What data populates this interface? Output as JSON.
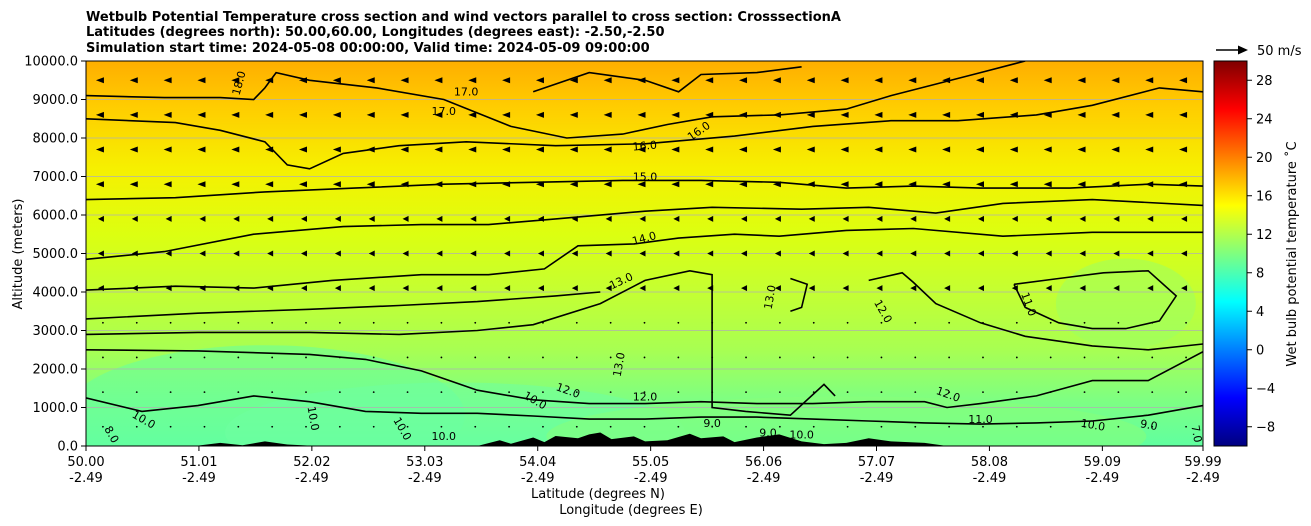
{
  "chart_data": {
    "type": "heatmap",
    "title_lines": [
      "Wetbulb Potential Temperature cross section and wind vectors parallel to cross section: CrosssectionA",
      "Latitudes (degrees north): 50.00,60.00, Longitudes (degrees east): -2.50,-2.50",
      "Simulation start time: 2024-05-08 00:00:00, Valid time: 2024-05-09 09:00:00"
    ],
    "ylabel": "Altitude (meters)",
    "xlabel_lines": [
      "Latitude (degrees N)",
      "Longitude (degrees E)"
    ],
    "x_range": [
      50.0,
      59.99
    ],
    "ylim": [
      0,
      10000
    ],
    "x_ticks": [
      {
        "lat": "50.00",
        "lon": "-2.49",
        "value": 50.0
      },
      {
        "lat": "51.01",
        "lon": "-2.49",
        "value": 51.01
      },
      {
        "lat": "52.02",
        "lon": "-2.49",
        "value": 52.02
      },
      {
        "lat": "53.03",
        "lon": "-2.49",
        "value": 53.03
      },
      {
        "lat": "54.04",
        "lon": "-2.49",
        "value": 54.04
      },
      {
        "lat": "55.05",
        "lon": "-2.49",
        "value": 55.05
      },
      {
        "lat": "56.06",
        "lon": "-2.49",
        "value": 56.06
      },
      {
        "lat": "57.07",
        "lon": "-2.49",
        "value": 57.07
      },
      {
        "lat": "58.08",
        "lon": "-2.49",
        "value": 58.08
      },
      {
        "lat": "59.09",
        "lon": "-2.49",
        "value": 59.09
      },
      {
        "lat": "59.99",
        "lon": "-2.49",
        "value": 59.99
      }
    ],
    "y_ticks": [
      {
        "label": "0.0",
        "value": 0
      },
      {
        "label": "1000.0",
        "value": 1000
      },
      {
        "label": "2000.0",
        "value": 2000
      },
      {
        "label": "3000.0",
        "value": 3000
      },
      {
        "label": "4000.0",
        "value": 4000
      },
      {
        "label": "5000.0",
        "value": 5000
      },
      {
        "label": "6000.0",
        "value": 6000
      },
      {
        "label": "7000.0",
        "value": 7000
      },
      {
        "label": "8000.0",
        "value": 8000
      },
      {
        "label": "9000.0",
        "value": 9000
      },
      {
        "label": "10000.0",
        "value": 10000
      }
    ],
    "grid": "horizontal",
    "colorbar": {
      "label": "Wet bulb potential temperature ˚C",
      "range": [
        -10,
        30
      ],
      "ticks": [
        {
          "label": "−8",
          "value": -8
        },
        {
          "label": "−4",
          "value": -4
        },
        {
          "label": "0",
          "value": 0
        },
        {
          "label": "4",
          "value": 4
        },
        {
          "label": "8",
          "value": 8
        },
        {
          "label": "12",
          "value": 12
        },
        {
          "label": "16",
          "value": 16
        },
        {
          "label": "20",
          "value": 20
        },
        {
          "label": "24",
          "value": 24
        },
        {
          "label": "28",
          "value": 28
        }
      ],
      "colors": [
        "#00007f",
        "#0000ff",
        "#007fff",
        "#00ffff",
        "#7fff7f",
        "#ffff00",
        "#ff7f00",
        "#ff0000",
        "#7f0000"
      ]
    },
    "wind_key": {
      "label": "50 m/s"
    },
    "contour_lines": [
      {
        "level": 11,
        "label": "11.0",
        "points": [
          [
            50.0,
            1250
          ],
          [
            50.5,
            900
          ],
          [
            51.0,
            1050
          ],
          [
            51.5,
            1300
          ],
          [
            52.0,
            1150
          ],
          [
            52.5,
            900
          ],
          [
            53.0,
            850
          ],
          [
            53.5,
            850
          ],
          [
            54.0,
            780
          ],
          [
            54.5,
            700
          ],
          [
            55.0,
            700
          ],
          [
            55.5,
            750
          ],
          [
            56.0,
            750
          ],
          [
            56.5,
            700
          ],
          [
            57.0,
            650
          ],
          [
            57.5,
            600
          ],
          [
            58.0,
            570
          ],
          [
            58.5,
            600
          ],
          [
            59.0,
            650
          ],
          [
            59.5,
            800
          ],
          [
            59.99,
            1050
          ]
        ]
      },
      {
        "level": 12,
        "label": "12.0",
        "points": [
          [
            50.0,
            2500
          ],
          [
            51.0,
            2470
          ],
          [
            52.0,
            2380
          ],
          [
            52.5,
            2250
          ],
          [
            53.0,
            1950
          ],
          [
            53.5,
            1450
          ],
          [
            54.0,
            1200
          ],
          [
            54.5,
            1100
          ],
          [
            55.0,
            1100
          ],
          [
            55.5,
            1150
          ],
          [
            56.0,
            1100
          ],
          [
            56.5,
            1100
          ],
          [
            57.0,
            1150
          ],
          [
            57.5,
            1150
          ],
          [
            57.7,
            1000
          ],
          [
            58.0,
            1100
          ],
          [
            58.5,
            1300
          ],
          [
            59.0,
            1700
          ],
          [
            59.5,
            1700
          ],
          [
            59.99,
            2450
          ]
        ]
      },
      {
        "level": 13,
        "label": "13.0",
        "points": [
          [
            50.0,
            2900
          ],
          [
            51.0,
            2950
          ],
          [
            52.0,
            2950
          ],
          [
            52.8,
            2900
          ],
          [
            53.5,
            3000
          ],
          [
            54.0,
            3150
          ],
          [
            54.6,
            3700
          ],
          [
            55.0,
            4300
          ],
          [
            55.4,
            4550
          ],
          [
            55.6,
            4450
          ],
          [
            55.6,
            1000
          ],
          [
            55.9,
            900
          ],
          [
            56.3,
            800
          ],
          [
            56.6,
            1600
          ],
          [
            56.7,
            1300
          ]
        ]
      },
      {
        "level": 13,
        "label": "13.0",
        "points": [
          [
            56.3,
            3500
          ],
          [
            56.4,
            3600
          ],
          [
            56.45,
            4200
          ],
          [
            56.3,
            4350
          ]
        ]
      },
      {
        "level": 13,
        "label": "",
        "points": [
          [
            50.0,
            3300
          ],
          [
            51.0,
            3450
          ],
          [
            52.0,
            3550
          ],
          [
            52.8,
            3650
          ],
          [
            53.5,
            3750
          ],
          [
            54.2,
            3900
          ],
          [
            54.6,
            4000
          ]
        ]
      },
      {
        "level": 12,
        "label": "12.0",
        "points": [
          [
            57.0,
            4300
          ],
          [
            57.3,
            4500
          ],
          [
            57.4,
            4250
          ],
          [
            57.6,
            3700
          ],
          [
            58.0,
            3200
          ],
          [
            58.4,
            2850
          ],
          [
            59.0,
            2600
          ],
          [
            59.5,
            2500
          ],
          [
            59.99,
            2650
          ]
        ]
      },
      {
        "level": 11,
        "label": "11.0",
        "points": [
          [
            58.3,
            4200
          ],
          [
            58.4,
            3600
          ],
          [
            58.7,
            3200
          ],
          [
            59.0,
            3050
          ],
          [
            59.3,
            3050
          ],
          [
            59.6,
            3250
          ],
          [
            59.75,
            3900
          ],
          [
            59.5,
            4550
          ],
          [
            59.1,
            4500
          ],
          [
            58.7,
            4350
          ],
          [
            58.3,
            4200
          ]
        ]
      },
      {
        "level": 14,
        "label": "14.0",
        "points": [
          [
            50.0,
            4050
          ],
          [
            50.8,
            4150
          ],
          [
            51.5,
            4100
          ],
          [
            52.2,
            4300
          ],
          [
            53.0,
            4450
          ],
          [
            53.6,
            4450
          ],
          [
            54.1,
            4600
          ],
          [
            54.4,
            5200
          ],
          [
            54.9,
            5250
          ],
          [
            55.3,
            5400
          ],
          [
            55.8,
            5500
          ],
          [
            56.2,
            5450
          ],
          [
            56.8,
            5600
          ],
          [
            57.4,
            5650
          ],
          [
            58.2,
            5450
          ],
          [
            59.0,
            5550
          ],
          [
            59.99,
            5550
          ]
        ]
      },
      {
        "level": 14,
        "label": "",
        "points": [
          [
            50.0,
            4850
          ],
          [
            50.7,
            5050
          ],
          [
            51.5,
            5500
          ],
          [
            52.3,
            5700
          ],
          [
            53.0,
            5750
          ],
          [
            53.6,
            5750
          ],
          [
            54.2,
            5900
          ],
          [
            55.0,
            6100
          ],
          [
            55.6,
            6200
          ],
          [
            56.4,
            6150
          ],
          [
            57.0,
            6200
          ],
          [
            57.6,
            6050
          ],
          [
            58.2,
            6300
          ],
          [
            59.0,
            6400
          ],
          [
            59.99,
            6250
          ]
        ]
      },
      {
        "level": 15,
        "label": "15.0",
        "points": [
          [
            50.0,
            6400
          ],
          [
            50.8,
            6450
          ],
          [
            51.6,
            6600
          ],
          [
            52.4,
            6700
          ],
          [
            53.2,
            6800
          ],
          [
            54.0,
            6850
          ],
          [
            54.8,
            6900
          ],
          [
            55.5,
            6900
          ],
          [
            56.2,
            6850
          ],
          [
            56.8,
            6700
          ],
          [
            57.4,
            6750
          ],
          [
            58.0,
            6700
          ],
          [
            58.8,
            6700
          ],
          [
            59.5,
            6800
          ],
          [
            59.99,
            6750
          ]
        ]
      },
      {
        "level": 16,
        "label": "16.0",
        "points": [
          [
            50.0,
            8500
          ],
          [
            50.8,
            8400
          ],
          [
            51.2,
            8200
          ],
          [
            51.6,
            7900
          ],
          [
            51.8,
            7300
          ],
          [
            52.0,
            7200
          ],
          [
            52.3,
            7600
          ],
          [
            52.8,
            7800
          ],
          [
            53.4,
            7900
          ],
          [
            54.2,
            7800
          ],
          [
            55.0,
            7850
          ],
          [
            55.8,
            8050
          ],
          [
            56.5,
            8300
          ],
          [
            57.2,
            8450
          ],
          [
            57.8,
            8450
          ],
          [
            58.5,
            8600
          ],
          [
            59.0,
            8850
          ],
          [
            59.6,
            9300
          ],
          [
            59.99,
            9200
          ]
        ]
      },
      {
        "level": 17,
        "label": "17.0",
        "points": [
          [
            50.0,
            9100
          ],
          [
            50.7,
            9050
          ],
          [
            51.2,
            9050
          ],
          [
            51.5,
            9000
          ],
          [
            51.6,
            9300
          ],
          [
            51.7,
            9700
          ],
          [
            52.0,
            9500
          ],
          [
            52.6,
            9300
          ],
          [
            53.2,
            9000
          ],
          [
            53.8,
            8300
          ],
          [
            54.3,
            8000
          ],
          [
            54.8,
            8100
          ],
          [
            55.2,
            8350
          ],
          [
            55.6,
            8550
          ],
          [
            56.2,
            8600
          ],
          [
            56.8,
            8750
          ],
          [
            57.2,
            9100
          ],
          [
            57.6,
            9400
          ],
          [
            58.0,
            9700
          ],
          [
            58.4,
            10000
          ]
        ]
      },
      {
        "level": 17,
        "label": "",
        "points": [
          [
            54.0,
            9200
          ],
          [
            54.5,
            9700
          ],
          [
            55.0,
            9500
          ],
          [
            55.3,
            9200
          ],
          [
            55.5,
            9650
          ],
          [
            56.0,
            9700
          ],
          [
            56.4,
            9850
          ]
        ]
      }
    ],
    "contour_labels": [
      {
        "text": "17.0",
        "x": 53.4,
        "y": 9100,
        "rot": 0
      },
      {
        "text": "17.0",
        "x": 53.2,
        "y": 8600,
        "rot": 0
      },
      {
        "text": "18.0",
        "x": 51.4,
        "y": 9400,
        "rot": -75
      },
      {
        "text": "16.0",
        "x": 55.0,
        "y": 7700,
        "rot": -5
      },
      {
        "text": "16.0",
        "x": 55.5,
        "y": 8100,
        "rot": -35
      },
      {
        "text": "15.0",
        "x": 55.0,
        "y": 6900,
        "rot": 0
      },
      {
        "text": "14.0",
        "x": 55.0,
        "y": 5300,
        "rot": -15
      },
      {
        "text": "13.0",
        "x": 54.8,
        "y": 4200,
        "rot": -25
      },
      {
        "text": "13.0",
        "x": 56.15,
        "y": 3850,
        "rot": -80
      },
      {
        "text": "13.0",
        "x": 54.8,
        "y": 2100,
        "rot": -80
      },
      {
        "text": "12.0",
        "x": 57.1,
        "y": 3450,
        "rot": 60
      },
      {
        "text": "11.0",
        "x": 58.4,
        "y": 3650,
        "rot": 70
      },
      {
        "text": "12.0",
        "x": 54.3,
        "y": 1350,
        "rot": 20
      },
      {
        "text": "10.0",
        "x": 54.0,
        "y": 1100,
        "rot": 30
      },
      {
        "text": "12.0",
        "x": 55.0,
        "y": 1180,
        "rot": 0
      },
      {
        "text": "12.0",
        "x": 57.7,
        "y": 1250,
        "rot": 20
      },
      {
        "text": "11.0",
        "x": 58.0,
        "y": 600,
        "rot": 0
      },
      {
        "text": "10.0",
        "x": 59.0,
        "y": 450,
        "rot": 10
      },
      {
        "text": "9.0",
        "x": 59.5,
        "y": 450,
        "rot": 10
      },
      {
        "text": "9.0",
        "x": 55.6,
        "y": 500,
        "rot": 0
      },
      {
        "text": "9.0",
        "x": 56.1,
        "y": 250,
        "rot": 0
      },
      {
        "text": "10.0",
        "x": 50.5,
        "y": 600,
        "rot": 30
      },
      {
        "text": "8.0",
        "x": 50.2,
        "y": 250,
        "rot": 60
      },
      {
        "text": "10.0",
        "x": 52.0,
        "y": 700,
        "rot": 80
      },
      {
        "text": "10.0",
        "x": 53.2,
        "y": 150,
        "rot": 0
      },
      {
        "text": "10.0",
        "x": 52.8,
        "y": 400,
        "rot": 60
      },
      {
        "text": "10.0",
        "x": 56.4,
        "y": 200,
        "rot": 0
      },
      {
        "text": "7.0",
        "x": 59.9,
        "y": 300,
        "rot": 80
      }
    ],
    "terrain": [
      [
        50.0,
        0
      ],
      [
        51.0,
        10
      ],
      [
        51.2,
        80
      ],
      [
        51.4,
        20
      ],
      [
        51.6,
        120
      ],
      [
        51.8,
        40
      ],
      [
        52.0,
        10
      ],
      [
        53.0,
        0
      ],
      [
        53.5,
        0
      ],
      [
        53.7,
        150
      ],
      [
        53.8,
        60
      ],
      [
        54.0,
        220
      ],
      [
        54.1,
        100
      ],
      [
        54.2,
        260
      ],
      [
        54.4,
        200
      ],
      [
        54.5,
        300
      ],
      [
        54.6,
        350
      ],
      [
        54.7,
        180
      ],
      [
        54.9,
        250
      ],
      [
        55.0,
        120
      ],
      [
        55.2,
        150
      ],
      [
        55.4,
        320
      ],
      [
        55.5,
        200
      ],
      [
        55.7,
        250
      ],
      [
        55.8,
        100
      ],
      [
        56.0,
        220
      ],
      [
        56.2,
        300
      ],
      [
        56.4,
        120
      ],
      [
        56.6,
        50
      ],
      [
        56.8,
        80
      ],
      [
        57.0,
        200
      ],
      [
        57.2,
        120
      ],
      [
        57.5,
        80
      ],
      [
        57.7,
        0
      ],
      [
        59.99,
        0
      ]
    ],
    "wind_vectors": {
      "direction": "westward",
      "columns": 33,
      "rows": 11
    }
  }
}
